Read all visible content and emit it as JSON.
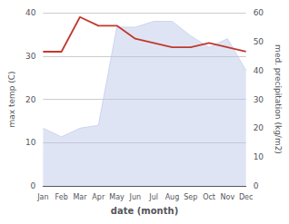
{
  "chart_data": {
    "type": "line",
    "xlabel": "date (month)",
    "ylabel": "max temp (C)",
    "y2label": "med. precipitation (kg/m2)",
    "categories": [
      "Jan",
      "Feb",
      "Mar",
      "Apr",
      "May",
      "Jun",
      "Jul",
      "Aug",
      "Sep",
      "Oct",
      "Nov",
      "Dec"
    ],
    "series": [
      {
        "type": "area",
        "axis": "y2",
        "color": "#b8c4e8",
        "values": [
          20,
          17,
          20,
          21,
          55,
          55,
          57,
          57,
          52,
          48,
          51,
          40
        ]
      },
      {
        "type": "line",
        "color": "#c0392b",
        "values": [
          31,
          31,
          39,
          37,
          37,
          34,
          33,
          32,
          32,
          33,
          32,
          31
        ]
      }
    ],
    "ylim": [
      0,
      40
    ],
    "yticks": [
      0,
      10,
      20,
      30,
      40
    ],
    "y2lim": [
      0,
      60
    ],
    "y2ticks": [
      0,
      10,
      20,
      30,
      40,
      50,
      60
    ],
    "grid": true
  }
}
